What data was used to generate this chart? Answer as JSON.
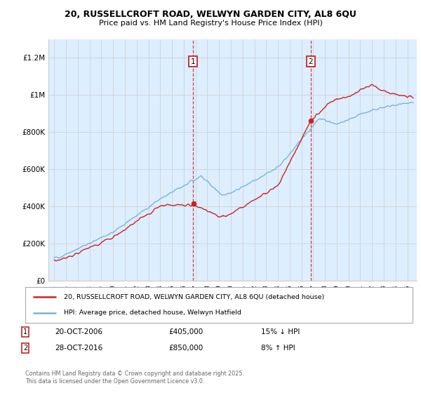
{
  "title_line1": "20, RUSSELLCROFT ROAD, WELWYN GARDEN CITY, AL8 6QU",
  "title_line2": "Price paid vs. HM Land Registry's House Price Index (HPI)",
  "ylim": [
    0,
    1300000
  ],
  "yticks": [
    0,
    200000,
    400000,
    600000,
    800000,
    1000000,
    1200000
  ],
  "ytick_labels": [
    "£0",
    "£200K",
    "£400K",
    "£600K",
    "£800K",
    "£1M",
    "£1.2M"
  ],
  "hpi_color": "#7ab4d8",
  "price_color": "#cc2222",
  "marker1_year": 2006.8,
  "marker1_price": 405000,
  "marker1_date": "20-OCT-2006",
  "marker1_pct": "15% ↓ HPI",
  "marker2_year": 2016.8,
  "marker2_price": 850000,
  "marker2_date": "28-OCT-2016",
  "marker2_pct": "8% ↑ HPI",
  "legend_line1": "20, RUSSELLCROFT ROAD, WELWYN GARDEN CITY, AL8 6QU (detached house)",
  "legend_line2": "HPI: Average price, detached house, Welwyn Hatfield",
  "footer": "Contains HM Land Registry data © Crown copyright and database right 2025.\nThis data is licensed under the Open Government Licence v3.0.",
  "bg_color": "#ddeeff",
  "grid_color": "#cccccc",
  "xmin": 1994.5,
  "xmax": 2025.8
}
